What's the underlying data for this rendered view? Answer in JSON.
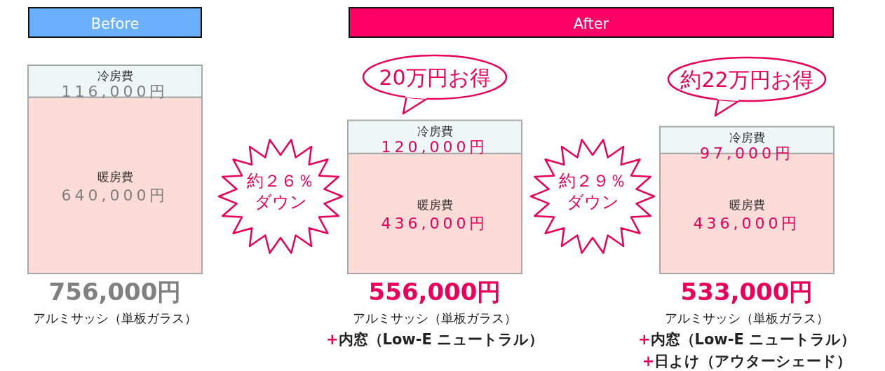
{
  "chart_data": {
    "type": "bar",
    "stacked": true,
    "categories": [
      "アルミサッシ（単板ガラス）",
      "アルミサッシ（単板ガラス）",
      "アルミサッシ（単板ガラス）"
    ],
    "series": [
      {
        "name": "暖房費",
        "color": "#fddcd8",
        "values": [
          640000,
          436000,
          436000
        ],
        "value_labels": [
          "640,000円",
          "436,000円",
          "436,000円"
        ]
      },
      {
        "name": "冷房費",
        "color": "#eef7f5",
        "values": [
          116000,
          120000,
          97000
        ],
        "value_labels": [
          "116,000円",
          "120,000円",
          "97,000円"
        ]
      }
    ],
    "totals": [
      "756,000円",
      "556,000円",
      "533,000円"
    ],
    "annotations": [
      "Before",
      "After",
      "約２６％",
      "ダウン",
      "約２９％",
      "ダウン",
      "20万円お得",
      "約22万円お得",
      "+内窓（Low-E ニュートラル）",
      "+内窓（Low-E ニュートラル）",
      "+日よけ（アウターシェード）"
    ]
  }
}
